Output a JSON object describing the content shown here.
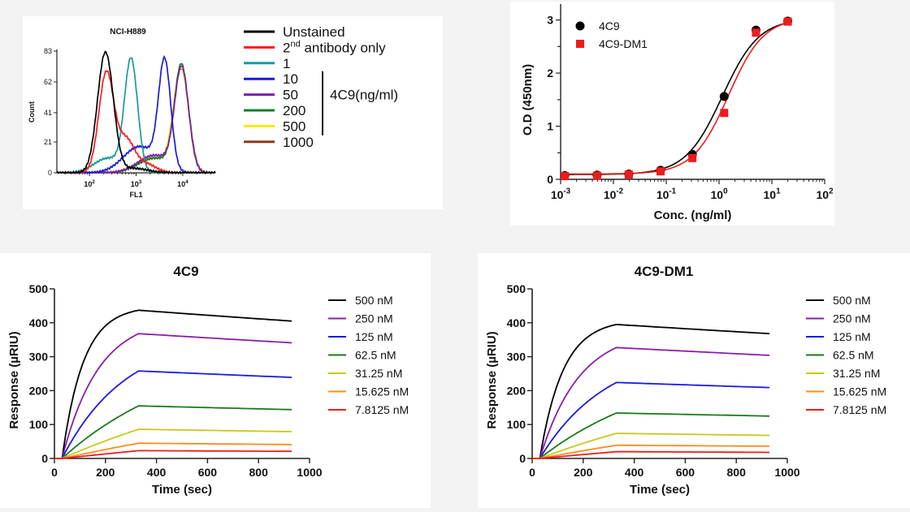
{
  "chart_data": [
    {
      "id": "flow",
      "type": "line",
      "title": "NCI-H889",
      "xlabel": "FL1",
      "ylabel": "Count",
      "xscale": "log",
      "xlim": [
        20,
        50000
      ],
      "ylim": [
        0,
        83
      ],
      "xticks": [
        {
          "v": 100,
          "base": "10",
          "exp": "2"
        },
        {
          "v": 1000,
          "base": "10",
          "exp": "3"
        },
        {
          "v": 10000,
          "base": "10",
          "exp": "4"
        }
      ],
      "yticks": [
        0,
        21,
        41,
        62,
        83
      ],
      "legend_group_label": "4C9(ng/ml)",
      "series": [
        {
          "name": "Unstained",
          "sup": "",
          "color": "#000000",
          "peaks": [
            {
              "x": 220,
              "h": 82,
              "w": 0.17
            }
          ],
          "tail": [
            {
              "x": 900,
              "h": 3,
              "w": 0.3
            }
          ]
        },
        {
          "name": "2",
          "sup": "nd",
          "suffix": " antibody only",
          "color": "#ff1a1a",
          "peaks": [
            {
              "x": 230,
              "h": 68,
              "w": 0.16
            },
            {
              "x": 600,
              "h": 22,
              "w": 0.18
            }
          ],
          "tail": [
            {
              "x": 1600,
              "h": 6,
              "w": 0.22
            }
          ]
        },
        {
          "name": "1",
          "sup": "",
          "color": "#1a9a96",
          "peaks": [
            {
              "x": 780,
              "h": 76,
              "w": 0.14
            }
          ],
          "tail": [
            {
              "x": 250,
              "h": 10,
              "w": 0.3
            }
          ]
        },
        {
          "name": "10",
          "sup": "",
          "color": "#1a1ad6",
          "peaks": [
            {
              "x": 4100,
              "h": 73,
              "w": 0.13
            }
          ],
          "tail": [
            {
              "x": 1200,
              "h": 18,
              "w": 0.35
            }
          ]
        },
        {
          "name": "50",
          "sup": "",
          "color": "#7a1fa8",
          "peaks": [
            {
              "x": 9500,
              "h": 70,
              "w": 0.15
            }
          ],
          "tail": [
            {
              "x": 2500,
              "h": 12,
              "w": 0.35
            }
          ]
        },
        {
          "name": "200",
          "sup": "",
          "color": "#1a7a30",
          "peaks": [
            {
              "x": 9400,
              "h": 72,
              "w": 0.15
            }
          ],
          "tail": [
            {
              "x": 2500,
              "h": 10,
              "w": 0.35
            }
          ]
        },
        {
          "name": "500",
          "sup": "",
          "color": "#f2ea1a",
          "peaks": [
            {
              "x": 9200,
              "h": 70,
              "w": 0.16
            }
          ],
          "tail": [
            {
              "x": 2200,
              "h": 10,
              "w": 0.35
            }
          ]
        },
        {
          "name": "1000",
          "sup": "",
          "color": "#8a3a1a",
          "peaks": [
            {
              "x": 9300,
              "h": 69,
              "w": 0.16
            }
          ],
          "tail": [
            {
              "x": 2400,
              "h": 10,
              "w": 0.35
            }
          ]
        }
      ]
    },
    {
      "id": "elisa",
      "type": "scatter",
      "xlabel": "Conc. (ng/ml)",
      "ylabel": "O.D (450nm)",
      "xscale": "log",
      "xlim": [
        0.001,
        100
      ],
      "ylim": [
        0,
        3.3
      ],
      "xticks": [
        {
          "v": 0.001,
          "base": "10",
          "exp": "-3"
        },
        {
          "v": 0.01,
          "base": "10",
          "exp": "-2"
        },
        {
          "v": 0.1,
          "base": "10",
          "exp": "-1"
        },
        {
          "v": 1,
          "base": "10",
          "exp": "0"
        },
        {
          "v": 10,
          "base": "10",
          "exp": "1"
        },
        {
          "v": 100,
          "base": "10",
          "exp": "2"
        }
      ],
      "yticks": [
        0,
        1,
        2,
        3
      ],
      "legend": "top-left",
      "series": [
        {
          "name": "4C9",
          "marker": "circle",
          "color": "#000000",
          "x": [
            0.0012,
            0.0049,
            0.0195,
            0.078,
            0.3125,
            1.25,
            5,
            20
          ],
          "y": [
            0.07,
            0.08,
            0.1,
            0.17,
            0.47,
            1.56,
            2.81,
            2.98
          ],
          "fit": {
            "bottom": 0.09,
            "top": 3.03,
            "ec50": 1.15,
            "hill": 1.25
          }
        },
        {
          "name": "4C9-DM1",
          "marker": "square",
          "color": "#ee1c1c",
          "x": [
            0.0012,
            0.0049,
            0.0195,
            0.078,
            0.3125,
            1.25,
            5,
            20
          ],
          "y": [
            0.06,
            0.07,
            0.09,
            0.15,
            0.4,
            1.25,
            2.76,
            2.97
          ],
          "fit": {
            "bottom": 0.1,
            "top": 3.05,
            "ec50": 1.5,
            "hill": 1.3
          }
        }
      ]
    },
    {
      "id": "spr1",
      "type": "line",
      "title": "4C9",
      "xlabel": "Time (sec)",
      "ylabel": "Response (µRIU)",
      "xlim": [
        0,
        1000
      ],
      "ylim": [
        0,
        500
      ],
      "xticks": [
        0,
        200,
        400,
        600,
        800,
        1000
      ],
      "yticks": [
        0,
        100,
        200,
        300,
        400,
        500
      ],
      "association_start": 30,
      "association_end": 330,
      "end_time": 930,
      "legend": "right",
      "series": [
        {
          "name": "500 nM",
          "color": "#000000",
          "peak": 437,
          "end": 405,
          "kon_rate": 0.012
        },
        {
          "name": "250 nM",
          "color": "#8a1fa8",
          "peak": 368,
          "end": 341,
          "kon_rate": 0.007
        },
        {
          "name": "125 nM",
          "color": "#1a1ae6",
          "peak": 258,
          "end": 239,
          "kon_rate": 0.004
        },
        {
          "name": "62.5 nM",
          "color": "#1a7a1a",
          "peak": 155,
          "end": 144,
          "kon_rate": 0.002
        },
        {
          "name": "31.25 nM",
          "color": "#c8c81e",
          "peak": 86,
          "end": 79,
          "kon_rate": 0.001
        },
        {
          "name": "15.625 nM",
          "color": "#ff8c1a",
          "peak": 45,
          "end": 41,
          "kon_rate": 0.0005
        },
        {
          "name": "7.8125 nM",
          "color": "#ee1c1c",
          "peak": 23,
          "end": 21,
          "kon_rate": 0.0003
        }
      ]
    },
    {
      "id": "spr2",
      "type": "line",
      "title": "4C9-DM1",
      "xlabel": "Time (sec)",
      "ylabel": "Response (µRIU)",
      "xlim": [
        0,
        1000
      ],
      "ylim": [
        0,
        500
      ],
      "xticks": [
        0,
        200,
        400,
        600,
        800,
        1000
      ],
      "yticks": [
        0,
        100,
        200,
        300,
        400,
        500
      ],
      "association_start": 30,
      "association_end": 330,
      "end_time": 930,
      "legend": "right",
      "series": [
        {
          "name": "500 nM",
          "color": "#000000",
          "peak": 395,
          "end": 368,
          "kon_rate": 0.011
        },
        {
          "name": "250 nM",
          "color": "#8a1fa8",
          "peak": 327,
          "end": 304,
          "kon_rate": 0.0065
        },
        {
          "name": "125 nM",
          "color": "#1a1ae6",
          "peak": 224,
          "end": 209,
          "kon_rate": 0.0038
        },
        {
          "name": "62.5 nM",
          "color": "#1a7a1a",
          "peak": 134,
          "end": 125,
          "kon_rate": 0.002
        },
        {
          "name": "31.25 nM",
          "color": "#c8c81e",
          "peak": 74,
          "end": 68,
          "kon_rate": 0.001
        },
        {
          "name": "15.625 nM",
          "color": "#ff8c1a",
          "peak": 39,
          "end": 36,
          "kon_rate": 0.0005
        },
        {
          "name": "7.8125 nM",
          "color": "#ee1c1c",
          "peak": 20,
          "end": 18,
          "kon_rate": 0.0003
        }
      ]
    }
  ]
}
